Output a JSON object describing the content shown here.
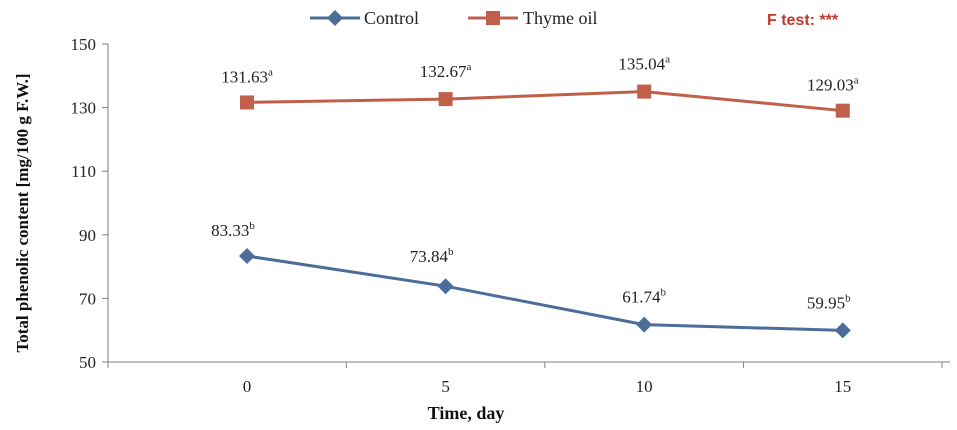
{
  "chart_data": {
    "type": "line",
    "x": [
      0,
      5,
      10,
      15
    ],
    "xlabel": "Time, day",
    "ylabel": "Total phenolic content [mg/100 g F.W.]",
    "ylim": [
      50,
      150
    ],
    "yticks": [
      50,
      70,
      90,
      110,
      130,
      150
    ],
    "grid": false,
    "legend_position": "top",
    "series": [
      {
        "name": "Control",
        "color": "#4a6d9a",
        "marker": "diamond",
        "values": [
          83.33,
          73.84,
          61.74,
          59.95
        ],
        "labels": [
          "83.33",
          "73.84",
          "61.74",
          "59.95"
        ],
        "letters": [
          "b",
          "b",
          "b",
          "b"
        ]
      },
      {
        "name": "Thyme oil",
        "color": "#c0604a",
        "marker": "square",
        "values": [
          131.63,
          132.67,
          135.04,
          129.03
        ],
        "labels": [
          "131.63",
          "132.67",
          "135.04",
          "129.03"
        ],
        "letters": [
          "a",
          "a",
          "a",
          "a"
        ]
      }
    ],
    "annotation": {
      "text": "F test: ***",
      "color": "#c0392b"
    }
  }
}
